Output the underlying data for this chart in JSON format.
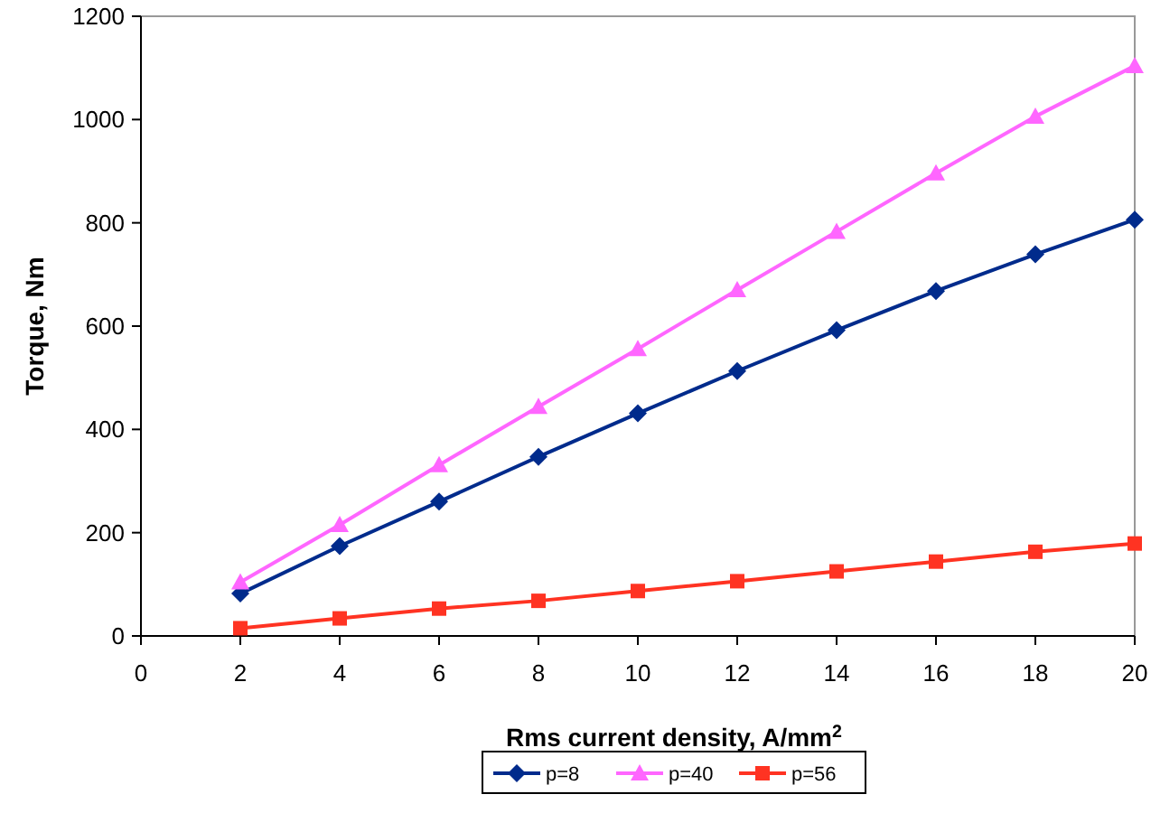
{
  "chart_data": {
    "type": "line",
    "xlabel": "Rms current density, A/mm$^{2}$",
    "ylabel": "Torque, Nm",
    "xlim": [
      0,
      20
    ],
    "xticks": [
      0,
      2,
      4,
      6,
      8,
      10,
      12,
      14,
      16,
      18,
      20
    ],
    "ylim": [
      0,
      1200
    ],
    "yticks": [
      0,
      200,
      400,
      600,
      800,
      1000,
      1200
    ],
    "x": [
      2,
      4,
      6,
      8,
      10,
      12,
      14,
      16,
      18,
      20
    ],
    "grid": false,
    "legend": "bottom",
    "series": [
      {
        "name": "p=8",
        "color": "#002b8c",
        "marker": "diamond",
        "values": [
          82,
          174,
          260,
          347,
          431,
          513,
          592,
          668,
          739,
          806
        ]
      },
      {
        "name": "p=40",
        "color": "#ff66ff",
        "marker": "triangle",
        "values": [
          104,
          215,
          331,
          444,
          556,
          670,
          783,
          896,
          1006,
          1104
        ]
      },
      {
        "name": "p=56",
        "color": "#ff3322",
        "marker": "square",
        "values": [
          15,
          34,
          53,
          68,
          87,
          106,
          125,
          144,
          163,
          179
        ]
      }
    ]
  }
}
